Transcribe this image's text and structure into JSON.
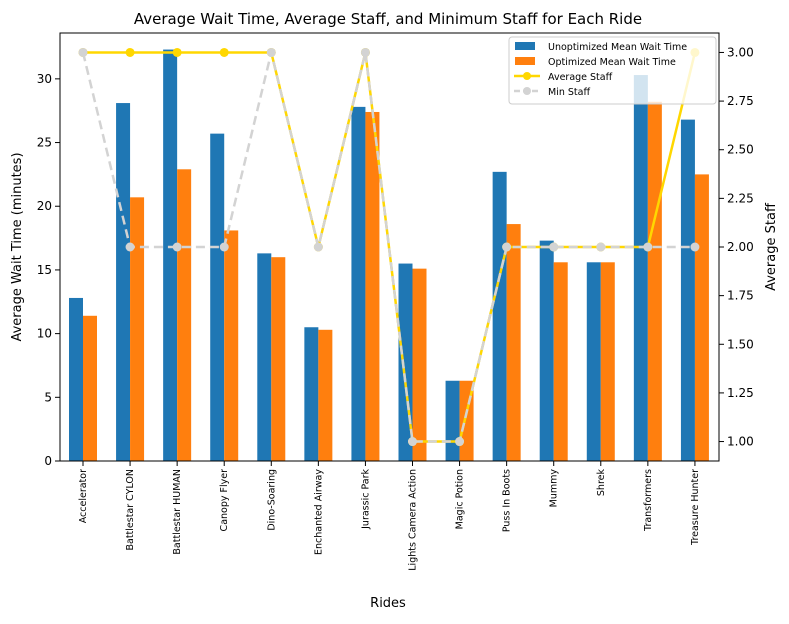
{
  "chart_data": {
    "type": "bar",
    "title": "Average Wait Time, Average Staff, and Minimum Staff for Each Ride",
    "xlabel": "Rides",
    "ylabel": "Average Wait Time (minutes)",
    "y2label": "Average Staff",
    "categories": [
      "Accelerator",
      "Battlestar CYLON",
      "Battlestar HUMAN",
      "Canopy Flyer",
      "Dino-Soaring",
      "Enchanted Airway",
      "Jurassic Park",
      "Lights Camera Action",
      "Magic Potion",
      "Puss In Boots",
      "Mummy",
      "Shrek",
      "Transformers",
      "Treasure Hunter"
    ],
    "ylim": [
      0,
      33.6
    ],
    "y2lim": [
      0.9,
      3.1
    ],
    "yticks": [
      0,
      5,
      10,
      15,
      20,
      25,
      30
    ],
    "y2ticks": [
      1.0,
      1.25,
      1.5,
      1.75,
      2.0,
      2.25,
      2.5,
      2.75,
      3.0
    ],
    "y2tick_labels": [
      "1.00",
      "1.25",
      "1.50",
      "1.75",
      "2.00",
      "2.25",
      "2.50",
      "2.75",
      "3.00"
    ],
    "bar_series": [
      {
        "name": "Unoptimized Mean Wait Time",
        "color": "#1f77b4",
        "values": [
          12.8,
          28.1,
          32.3,
          25.7,
          16.3,
          10.5,
          27.8,
          15.5,
          6.3,
          22.7,
          17.3,
          15.6,
          30.3,
          26.8
        ]
      },
      {
        "name": "Optimized Mean Wait Time",
        "color": "#ff7f0e",
        "values": [
          11.4,
          20.7,
          22.9,
          18.1,
          16.0,
          10.3,
          27.4,
          15.1,
          6.3,
          18.6,
          15.6,
          15.6,
          28.2,
          22.5
        ]
      }
    ],
    "line_series": [
      {
        "name": "Average Staff",
        "color": "#ffd700",
        "dashed": false,
        "values": [
          3,
          3,
          3,
          3,
          3,
          2,
          3,
          1,
          1,
          2,
          2,
          2,
          2,
          3
        ]
      },
      {
        "name": "Min Staff",
        "color": "#d3d3d3",
        "dashed": true,
        "values": [
          3,
          2,
          2,
          2,
          3,
          2,
          3,
          1,
          1,
          2,
          2,
          2,
          2,
          2
        ]
      }
    ],
    "legend_position": "top-right",
    "grid": false
  }
}
